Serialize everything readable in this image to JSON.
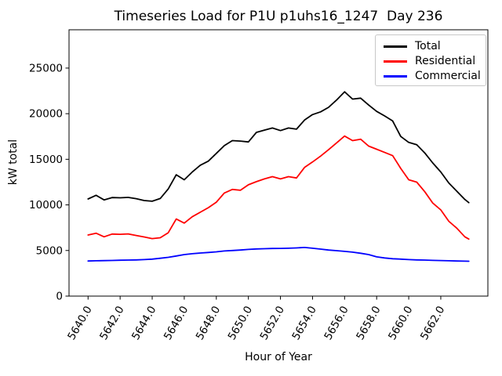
{
  "figure": {
    "background": "#ffffff"
  },
  "chart_data": {
    "type": "line",
    "title": "Timeseries Load for P1U p1uhs16_1247  Day 236",
    "xlabel": "Hour of Year",
    "ylabel": "kW total",
    "xlim": [
      5638.8125,
      5664.9375
    ],
    "ylim": [
      0,
      29200
    ],
    "grid": false,
    "legend_position": "upper right",
    "xticks": [
      5640,
      5642,
      5644,
      5646,
      5648,
      5650,
      5652,
      5654,
      5656,
      5658,
      5660,
      5662
    ],
    "xtick_labels": [
      "5640.0",
      "5642.0",
      "5644.0",
      "5646.0",
      "5648.0",
      "5650.0",
      "5652.0",
      "5654.0",
      "5656.0",
      "5658.0",
      "5660.0",
      "5662.0"
    ],
    "yticks": [
      0,
      5000,
      10000,
      15000,
      20000,
      25000
    ],
    "ytick_labels": [
      "0",
      "5000",
      "10000",
      "15000",
      "20000",
      "25000"
    ],
    "hours": [
      5640.0,
      5640.5,
      5641.0,
      5641.5,
      5642.0,
      5642.5,
      5643.0,
      5643.5,
      5644.0,
      5644.5,
      5645.0,
      5645.5,
      5646.0,
      5646.5,
      5647.0,
      5647.5,
      5648.0,
      5648.5,
      5649.0,
      5649.5,
      5650.0,
      5650.5,
      5651.0,
      5651.5,
      5652.0,
      5652.5,
      5653.0,
      5653.5,
      5654.0,
      5654.5,
      5655.0,
      5655.5,
      5656.0,
      5656.5,
      5657.0,
      5657.5,
      5658.0,
      5658.5,
      5659.0,
      5659.5,
      5660.0,
      5660.5,
      5661.0,
      5661.5,
      5662.0,
      5662.5,
      5663.0,
      5663.5,
      5663.75
    ],
    "series": [
      {
        "name": "Total",
        "color": "#000000",
        "values": [
          10650,
          11050,
          10550,
          10800,
          10780,
          10820,
          10680,
          10480,
          10400,
          10700,
          11750,
          13300,
          12750,
          13600,
          14350,
          14800,
          15650,
          16500,
          17050,
          17000,
          16900,
          17950,
          18200,
          18430,
          18150,
          18430,
          18300,
          19300,
          19900,
          20200,
          20700,
          21500,
          22400,
          21600,
          21700,
          20950,
          20250,
          19750,
          19200,
          17500,
          16850,
          16600,
          15700,
          14600,
          13600,
          12400,
          11500,
          10600,
          10250
        ]
      },
      {
        "name": "Residential",
        "color": "#ff0000",
        "values": [
          6700,
          6900,
          6500,
          6800,
          6780,
          6820,
          6650,
          6480,
          6300,
          6400,
          6950,
          8450,
          8000,
          8700,
          9200,
          9700,
          10300,
          11300,
          11700,
          11600,
          12200,
          12550,
          12850,
          13100,
          12850,
          13100,
          12950,
          14100,
          14700,
          15350,
          16050,
          16800,
          17550,
          17050,
          17200,
          16450,
          16100,
          15750,
          15400,
          14000,
          12750,
          12500,
          11450,
          10200,
          9450,
          8200,
          7450,
          6500,
          6250
        ]
      },
      {
        "name": "Commercial",
        "color": "#0000ff",
        "values": [
          3850,
          3870,
          3890,
          3910,
          3930,
          3950,
          3970,
          4000,
          4050,
          4150,
          4250,
          4400,
          4550,
          4650,
          4720,
          4780,
          4850,
          4950,
          5000,
          5050,
          5120,
          5170,
          5200,
          5220,
          5230,
          5250,
          5280,
          5330,
          5250,
          5150,
          5050,
          4980,
          4900,
          4820,
          4700,
          4550,
          4300,
          4180,
          4100,
          4050,
          4000,
          3970,
          3950,
          3920,
          3900,
          3870,
          3850,
          3830,
          3820
        ]
      }
    ]
  }
}
